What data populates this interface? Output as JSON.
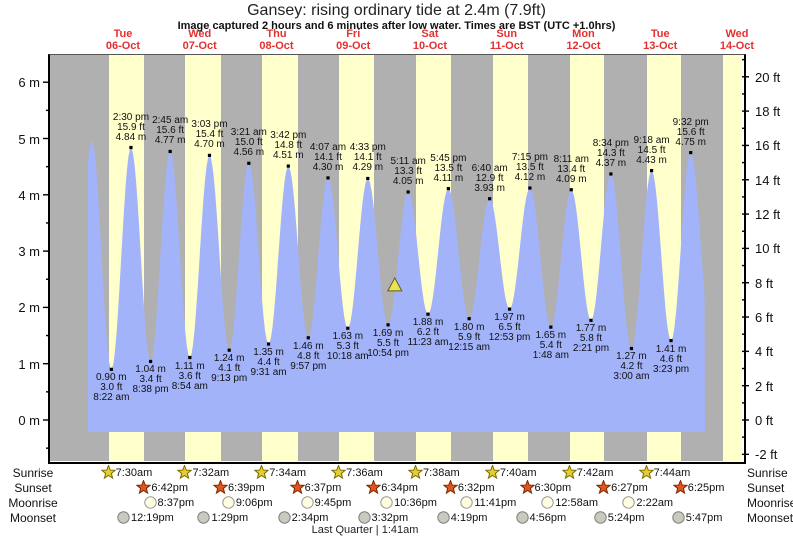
{
  "title": "Gansey: rising  ordinary tide at 2.4m (7.9ft)",
  "subtitle": "Image captured 2 hours and 6 minutes after low water. Times are BST (UTC +1.0hrs)",
  "days": [
    {
      "weekday": "Tue",
      "date": "06-Oct"
    },
    {
      "weekday": "Wed",
      "date": "07-Oct"
    },
    {
      "weekday": "Thu",
      "date": "08-Oct"
    },
    {
      "weekday": "Fri",
      "date": "09-Oct"
    },
    {
      "weekday": "Sat",
      "date": "10-Oct"
    },
    {
      "weekday": "Sun",
      "date": "11-Oct"
    },
    {
      "weekday": "Mon",
      "date": "12-Oct"
    },
    {
      "weekday": "Tue",
      "date": "13-Oct"
    },
    {
      "weekday": "Wed",
      "date": "14-Oct"
    }
  ],
  "axes": {
    "left_unit": "m",
    "right_unit": "ft",
    "left_labels": [
      "6 m",
      "5 m",
      "4 m",
      "3 m",
      "2 m",
      "1 m",
      "0 m"
    ],
    "right_labels": [
      "20 ft",
      "18 ft",
      "16 ft",
      "14 ft",
      "12 ft",
      "10 ft",
      "8 ft",
      "6 ft",
      "4 ft",
      "2 ft",
      "0 ft",
      "-2 ft"
    ]
  },
  "colors": {
    "night_band": "#b0b0b0",
    "day_band": "#ffffcc",
    "tide_fill": "#a3b3f9",
    "date_red": "#e53030",
    "marker_yellow": "#e8e44f"
  },
  "chart_data": {
    "type": "area",
    "title": "Gansey tide heights",
    "ylim_m": [
      -0.75,
      6.5
    ],
    "extremes": [
      {
        "kind": "high",
        "day": 0,
        "hour": 2.25,
        "level": 4.95,
        "unlabeled": true
      },
      {
        "kind": "low",
        "day": 0,
        "time": "8:22 am",
        "ft": "3.0 ft",
        "m": "0.90 m",
        "level": 0.9
      },
      {
        "kind": "high",
        "day": 0,
        "time": "2:30 pm",
        "ft": "15.9 ft",
        "m": "4.84 m",
        "level": 4.84
      },
      {
        "kind": "low",
        "day": 0,
        "time": "8:38 pm",
        "ft": "3.4 ft",
        "m": "1.04 m",
        "level": 1.04
      },
      {
        "kind": "high",
        "day": 1,
        "time": "2:45 am",
        "ft": "15.6 ft",
        "m": "4.77 m",
        "level": 4.77
      },
      {
        "kind": "low",
        "day": 1,
        "time": "8:54 am",
        "ft": "3.6 ft",
        "m": "1.11 m",
        "level": 1.11
      },
      {
        "kind": "high",
        "day": 1,
        "time": "3:03 pm",
        "ft": "15.4 ft",
        "m": "4.70 m",
        "level": 4.7
      },
      {
        "kind": "low",
        "day": 1,
        "time": "9:13 pm",
        "ft": "4.1 ft",
        "m": "1.24 m",
        "level": 1.24
      },
      {
        "kind": "high",
        "day": 2,
        "time": "3:21 am",
        "ft": "15.0 ft",
        "m": "4.56 m",
        "level": 4.56
      },
      {
        "kind": "low",
        "day": 2,
        "time": "9:31 am",
        "ft": "4.4 ft",
        "m": "1.35 m",
        "level": 1.35
      },
      {
        "kind": "high",
        "day": 2,
        "time": "3:42 pm",
        "ft": "14.8 ft",
        "m": "4.51 m",
        "level": 4.51
      },
      {
        "kind": "low",
        "day": 2,
        "time": "9:57 pm",
        "ft": "4.8 ft",
        "m": "1.46 m",
        "level": 1.46
      },
      {
        "kind": "high",
        "day": 3,
        "time": "4:07 am",
        "ft": "14.1 ft",
        "m": "4.30 m",
        "level": 4.3
      },
      {
        "kind": "low",
        "day": 3,
        "time": "10:18 am",
        "ft": "5.3 ft",
        "m": "1.63 m",
        "level": 1.63
      },
      {
        "kind": "high",
        "day": 3,
        "time": "4:33 pm",
        "ft": "14.1 ft",
        "m": "4.29 m",
        "level": 4.29
      },
      {
        "kind": "low",
        "day": 3,
        "time": "10:54 pm",
        "ft": "5.5 ft",
        "m": "1.69 m",
        "level": 1.69
      },
      {
        "kind": "high",
        "day": 4,
        "time": "5:11 am",
        "ft": "13.3 ft",
        "m": "4.05 m",
        "level": 4.05
      },
      {
        "kind": "low",
        "day": 4,
        "time": "11:23 am",
        "ft": "6.2 ft",
        "m": "1.88 m",
        "level": 1.88
      },
      {
        "kind": "high",
        "day": 4,
        "time": "5:45 pm",
        "ft": "13.5 ft",
        "m": "4.11 m",
        "level": 4.11
      },
      {
        "kind": "low",
        "day": 5,
        "time": "12:15 am",
        "ft": "5.9 ft",
        "m": "1.80 m",
        "level": 1.8
      },
      {
        "kind": "high",
        "day": 5,
        "time": "6:40 am",
        "ft": "12.9 ft",
        "m": "3.93 m",
        "level": 3.93
      },
      {
        "kind": "low",
        "day": 5,
        "time": "12:53 pm",
        "ft": "6.5 ft",
        "m": "1.97 m",
        "level": 1.97
      },
      {
        "kind": "high",
        "day": 5,
        "time": "7:15 pm",
        "ft": "13.5 ft",
        "m": "4.12 m",
        "level": 4.12
      },
      {
        "kind": "low",
        "day": 6,
        "time": "1:48 am",
        "ft": "5.4 ft",
        "m": "1.65 m",
        "level": 1.65
      },
      {
        "kind": "high",
        "day": 6,
        "time": "8:11 am",
        "ft": "13.4 ft",
        "m": "4.09 m",
        "level": 4.09
      },
      {
        "kind": "low",
        "day": 6,
        "time": "2:21 pm",
        "ft": "5.8 ft",
        "m": "1.77 m",
        "level": 1.77
      },
      {
        "kind": "high",
        "day": 6,
        "time": "8:34 pm",
        "ft": "14.3 ft",
        "m": "4.37 m",
        "level": 4.37
      },
      {
        "kind": "low",
        "day": 7,
        "time": "3:00 am",
        "ft": "4.2 ft",
        "m": "1.27 m",
        "level": 1.27
      },
      {
        "kind": "high",
        "day": 7,
        "time": "9:18 am",
        "ft": "14.5 ft",
        "m": "4.43 m",
        "level": 4.43
      },
      {
        "kind": "low",
        "day": 7,
        "time": "3:23 pm",
        "ft": "4.6 ft",
        "m": "1.41 m",
        "level": 1.41
      },
      {
        "kind": "high",
        "day": 7,
        "time": "9:32 pm",
        "ft": "15.6 ft",
        "m": "4.75 m",
        "level": 4.75
      }
    ],
    "current_marker": {
      "day": 4,
      "time": "1:00 am",
      "level_m": 2.4
    }
  },
  "almanac": {
    "rows": [
      {
        "label": "Sunrise",
        "icon": "sunrise-star",
        "entries": [
          {
            "day": 0,
            "time": "7:30am"
          },
          {
            "day": 1,
            "time": "7:32am"
          },
          {
            "day": 2,
            "time": "7:34am"
          },
          {
            "day": 3,
            "time": "7:36am"
          },
          {
            "day": 4,
            "time": "7:38am"
          },
          {
            "day": 5,
            "time": "7:40am"
          },
          {
            "day": 6,
            "time": "7:42am"
          },
          {
            "day": 7,
            "time": "7:44am"
          }
        ]
      },
      {
        "label": "Sunset",
        "icon": "sunset-star",
        "entries": [
          {
            "day": 0,
            "time": "6:42pm"
          },
          {
            "day": 1,
            "time": "6:39pm"
          },
          {
            "day": 2,
            "time": "6:37pm"
          },
          {
            "day": 3,
            "time": "6:34pm"
          },
          {
            "day": 4,
            "time": "6:32pm"
          },
          {
            "day": 5,
            "time": "6:30pm"
          },
          {
            "day": 6,
            "time": "6:27pm"
          },
          {
            "day": 7,
            "time": "6:25pm"
          }
        ]
      },
      {
        "label": "Moonrise",
        "icon": "moonrise-disc",
        "entries": [
          {
            "day": 0,
            "time": "8:37pm"
          },
          {
            "day": 1,
            "time": "9:06pm"
          },
          {
            "day": 2,
            "time": "9:45pm"
          },
          {
            "day": 3,
            "time": "10:36pm"
          },
          {
            "day": 4,
            "time": "11:41pm"
          },
          {
            "day": 6,
            "time": "12:58am"
          },
          {
            "day": 7,
            "time": "2:22am"
          }
        ]
      },
      {
        "label": "Moonset",
        "icon": "moonset-disc",
        "entries": [
          {
            "day": 0,
            "time": "12:19pm"
          },
          {
            "day": 1,
            "time": "1:29pm"
          },
          {
            "day": 2,
            "time": "2:34pm"
          },
          {
            "day": 3,
            "time": "3:32pm"
          },
          {
            "day": 4,
            "time": "4:19pm"
          },
          {
            "day": 5,
            "time": "4:56pm"
          },
          {
            "day": 6,
            "time": "5:24pm"
          },
          {
            "day": 7,
            "time": "5:47pm"
          }
        ]
      }
    ],
    "moon_phase": "Last Quarter | 1:41am"
  }
}
